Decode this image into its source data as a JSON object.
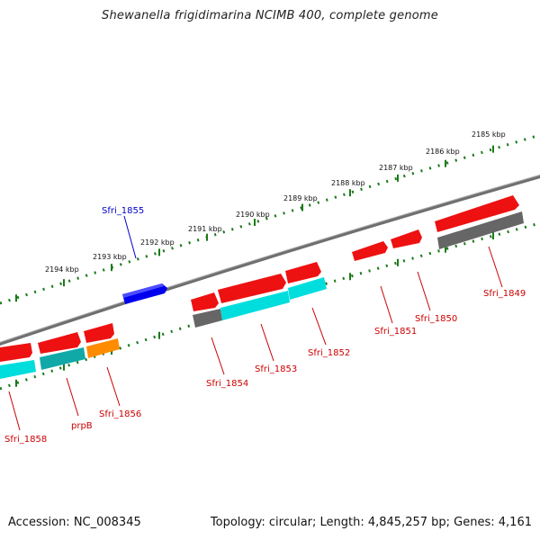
{
  "title": "Shewanella frigidimarina NCIMB 400, complete genome",
  "footer": {
    "accession": "Accession: NC_008345",
    "summary": "Topology: circular; Length: 4,845,257 bp; Genes: 4,161"
  },
  "colors": {
    "genome_line": "#808080",
    "tick": "#1a7a1a",
    "forward_gene": "#ee1111",
    "reverse_cds": "#00dddd",
    "rna_gray": "#666666",
    "highlight_gene": "#0000ee",
    "orange_gene": "#ff8c00",
    "teal_gene": "#11a8a8",
    "label_red": "#cc0000",
    "label_blue": "#0000cc"
  },
  "kbp_labels": [
    "2185 kbp",
    "2186 kbp",
    "2187 kbp",
    "2188 kbp",
    "2189 kbp",
    "2190 kbp",
    "2191 kbp",
    "2192 kbp",
    "2193 kbp",
    "2194 kbp"
  ],
  "gene_labels": [
    "Sfri_1855",
    "Sfri_1849",
    "Sfri_1850",
    "Sfri_1851",
    "Sfri_1852",
    "Sfri_1853",
    "Sfri_1854",
    "Sfri_1856",
    "prpB",
    "Sfri_1858"
  ]
}
